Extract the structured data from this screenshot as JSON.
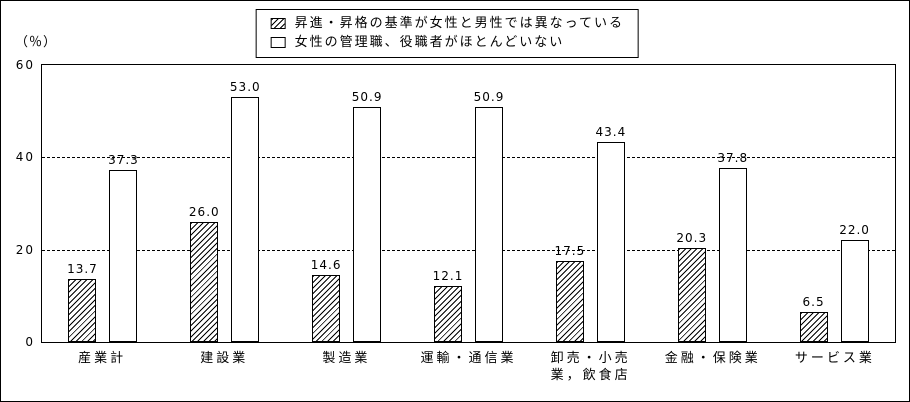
{
  "chart_data": {
    "type": "bar",
    "categories": [
      "産業計",
      "建設業",
      "製造業",
      "運輸・通信業",
      "卸売・小売\n業，飲食店",
      "金融・保険業",
      "サービス業"
    ],
    "series": [
      {
        "name": "昇進・昇格の基準が女性と男性では異なっている",
        "style": "hatched",
        "values": [
          13.7,
          26.0,
          14.6,
          12.1,
          17.5,
          20.3,
          6.5
        ]
      },
      {
        "name": "女性の管理職、役職者がほとんどいない",
        "style": "plain",
        "values": [
          37.3,
          53.0,
          50.9,
          50.9,
          43.4,
          37.8,
          22.0
        ]
      }
    ],
    "ylabel": "（％）",
    "ylim": [
      0,
      60
    ],
    "yticks": [
      0,
      20,
      40,
      60
    ],
    "grid": "dashed-horizontal",
    "legend_position": "top-center"
  }
}
